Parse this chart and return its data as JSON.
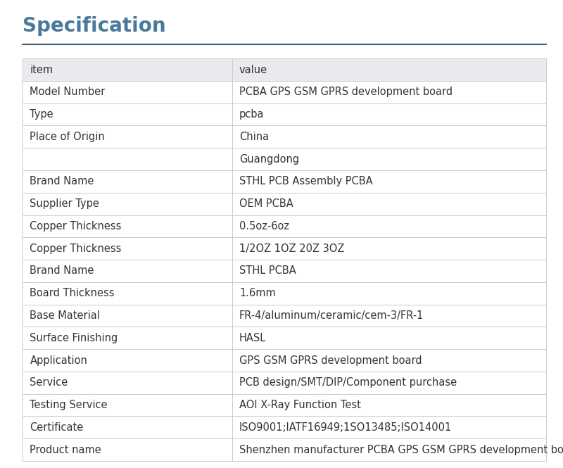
{
  "title": "Specification",
  "title_color": "#4a7a9b",
  "title_fontsize": 20,
  "separator_color": "#4a6074",
  "background_color": "#ffffff",
  "table_border_color": "#cccccc",
  "header_bg": "#e8eaed",
  "col_split": 0.4,
  "text_color": "#333333",
  "text_fontsize": 10.5,
  "rows": [
    [
      "item",
      "value"
    ],
    [
      "Model Number",
      "PCBA GPS GSM GPRS development board"
    ],
    [
      "Type",
      "pcba"
    ],
    [
      "Place of Origin",
      "China"
    ],
    [
      "",
      "Guangdong"
    ],
    [
      "Brand Name",
      "STHL PCB Assembly PCBA"
    ],
    [
      "Supplier Type",
      "OEM PCBA"
    ],
    [
      "Copper Thickness",
      "0.5oz-6oz"
    ],
    [
      "Copper Thickness",
      "1/2OZ 1OZ 20Z 3OZ"
    ],
    [
      "Brand Name",
      "STHL PCBA"
    ],
    [
      "Board Thickness",
      "1.6mm"
    ],
    [
      "Base Material",
      "FR-4/aluminum/ceramic/cem-3/FR-1"
    ],
    [
      "Surface Finishing",
      "HASL"
    ],
    [
      "Application",
      "GPS GSM GPRS development board"
    ],
    [
      "Service",
      "PCB design/SMT/DIP/Component purchase"
    ],
    [
      "Testing Service",
      "AOI X-Ray Function Test"
    ],
    [
      "Certificate",
      "ISO9001;IATF16949;1SO13485;ISO14001"
    ],
    [
      "Product name",
      "Shenzhen manufacturer PCBA GPS GSM GPRS development board"
    ]
  ]
}
